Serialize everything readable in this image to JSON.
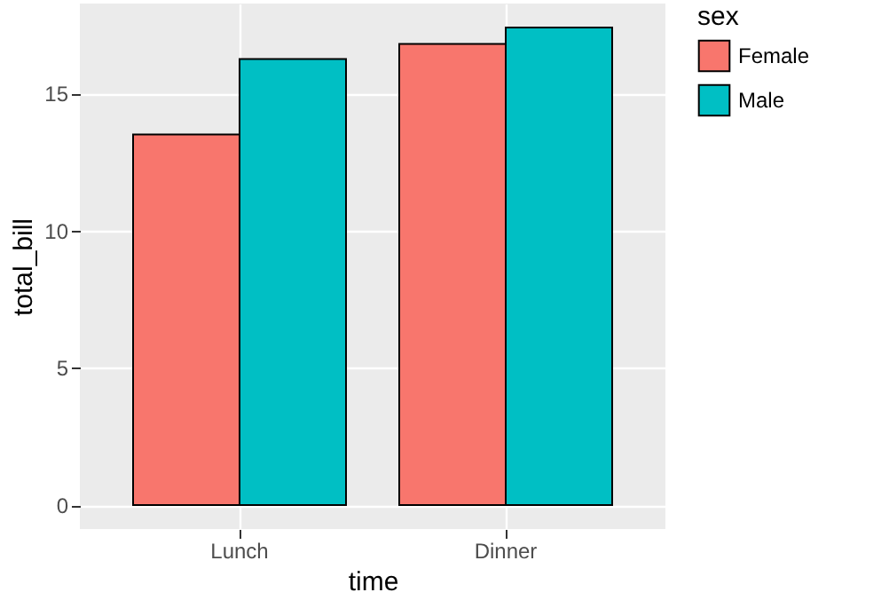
{
  "chart_data": {
    "type": "bar",
    "xlabel": "time",
    "ylabel": "total_bill",
    "legend_title": "sex",
    "categories": [
      "Lunch",
      "Dinner"
    ],
    "series": [
      {
        "name": "Female",
        "color": "#f8766d",
        "values": [
          13.5,
          16.8
        ]
      },
      {
        "name": "Male",
        "color": "#00bfc4",
        "values": [
          16.25,
          17.4
        ]
      }
    ],
    "ylim": [
      -0.87,
      18.27
    ],
    "yticks": [
      0,
      5,
      10,
      15
    ],
    "grid": true,
    "legend": "right"
  }
}
